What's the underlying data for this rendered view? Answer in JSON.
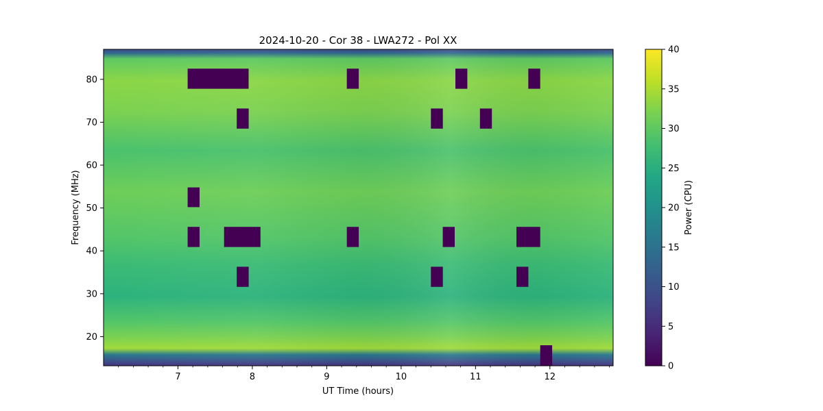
{
  "chart_data": {
    "type": "heatmap",
    "title": "2024-10-20 - Cor 38 - LWA272 - Pol XX",
    "xlabel": "UT Time (hours)",
    "ylabel": "Frequency (MHz)",
    "xlim": [
      6.0,
      12.85
    ],
    "ylim": [
      13.2,
      87.0
    ],
    "x_ticks": [
      "7",
      "8",
      "9",
      "10",
      "11",
      "12"
    ],
    "y_ticks": [
      "20",
      "30",
      "40",
      "50",
      "60",
      "70",
      "80"
    ],
    "grid": false,
    "colormap": "viridis",
    "colorbar": {
      "label": "Power (CPU)",
      "range": [
        0,
        40
      ],
      "ticks": [
        "0",
        "5",
        "10",
        "15",
        "20",
        "25",
        "30",
        "35",
        "40"
      ]
    },
    "background_power": 28,
    "flagged_blocks": [
      {
        "t0": 7.13,
        "t1": 7.95,
        "f0": 77.8,
        "f1": 82.5,
        "power": 0
      },
      {
        "t0": 9.27,
        "t1": 9.43,
        "f0": 77.8,
        "f1": 82.5,
        "power": 0
      },
      {
        "t0": 10.73,
        "t1": 10.89,
        "f0": 77.8,
        "f1": 82.5,
        "power": 0
      },
      {
        "t0": 11.71,
        "t1": 11.87,
        "f0": 77.8,
        "f1": 82.5,
        "power": 0
      },
      {
        "t0": 7.79,
        "t1": 7.95,
        "f0": 68.5,
        "f1": 73.2,
        "power": 0
      },
      {
        "t0": 10.4,
        "t1": 10.56,
        "f0": 68.5,
        "f1": 73.2,
        "power": 0
      },
      {
        "t0": 11.06,
        "t1": 11.22,
        "f0": 68.5,
        "f1": 73.2,
        "power": 0
      },
      {
        "t0": 7.13,
        "t1": 7.29,
        "f0": 50.2,
        "f1": 54.8,
        "power": 0
      },
      {
        "t0": 7.13,
        "t1": 7.29,
        "f0": 40.9,
        "f1": 45.6,
        "power": 0
      },
      {
        "t0": 7.62,
        "t1": 8.11,
        "f0": 40.9,
        "f1": 45.6,
        "power": 0
      },
      {
        "t0": 9.27,
        "t1": 9.43,
        "f0": 40.9,
        "f1": 45.6,
        "power": 0
      },
      {
        "t0": 10.56,
        "t1": 10.72,
        "f0": 40.9,
        "f1": 45.6,
        "power": 0
      },
      {
        "t0": 11.55,
        "t1": 11.87,
        "f0": 40.9,
        "f1": 45.6,
        "power": 0
      },
      {
        "t0": 7.79,
        "t1": 7.95,
        "f0": 31.6,
        "f1": 36.3,
        "power": 0
      },
      {
        "t0": 10.4,
        "t1": 10.56,
        "f0": 31.6,
        "f1": 36.3,
        "power": 0
      },
      {
        "t0": 11.55,
        "t1": 11.71,
        "f0": 31.6,
        "f1": 36.3,
        "power": 0
      },
      {
        "t0": 11.87,
        "t1": 12.03,
        "f0": 13.2,
        "f1": 18.0,
        "power": 0
      }
    ]
  }
}
